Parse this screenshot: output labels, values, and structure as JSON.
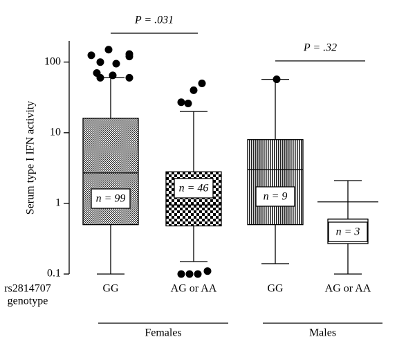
{
  "chart_data": {
    "type": "box",
    "ylabel": "Serum type I IFN activity",
    "log_scale": true,
    "ylim": [
      0.1,
      200
    ],
    "yticks": [
      0.1,
      1,
      10,
      100
    ],
    "x_title": [
      "rs2814707",
      "genotype"
    ],
    "categories": [
      "GG",
      "AG or AA",
      "GG",
      "AG or AA"
    ],
    "groups": [
      {
        "name": "Females",
        "span": [
          0,
          1
        ]
      },
      {
        "name": "Males",
        "span": [
          2,
          3
        ]
      }
    ],
    "boxes": [
      {
        "whisker_low": 0.1,
        "q1": 0.5,
        "median": 2.7,
        "q3": 16,
        "whisker_high": 60,
        "outliers": [
          125,
          150,
          130,
          100,
          95,
          120,
          70,
          65,
          60,
          60
        ],
        "label": "n = 99",
        "pattern": "crosshatch"
      },
      {
        "whisker_low": 0.15,
        "q1": 0.48,
        "median": 0.95,
        "q3": 2.8,
        "whisker_high": 20,
        "outliers": [
          27,
          26,
          40,
          50,
          0.1,
          0.1,
          0.1,
          0.11
        ],
        "label": "n = 46",
        "pattern": "checker"
      },
      {
        "whisker_low": 0.14,
        "q1": 0.5,
        "median": 3.0,
        "q3": 8,
        "whisker_high": 57,
        "outliers": [
          57
        ],
        "label": "n = 9",
        "pattern": "vertical"
      },
      {
        "whisker_low": 0.1,
        "q1": 0.27,
        "median": 0.6,
        "q3": 0.6,
        "whisker_high": 2.1,
        "line": 1.05,
        "outliers": [],
        "label": "n = 3",
        "pattern": "none"
      }
    ],
    "annotations": [
      {
        "text": "P = .031",
        "span": [
          0,
          1
        ]
      },
      {
        "text": "P = .32",
        "span": [
          2,
          3
        ]
      }
    ]
  }
}
